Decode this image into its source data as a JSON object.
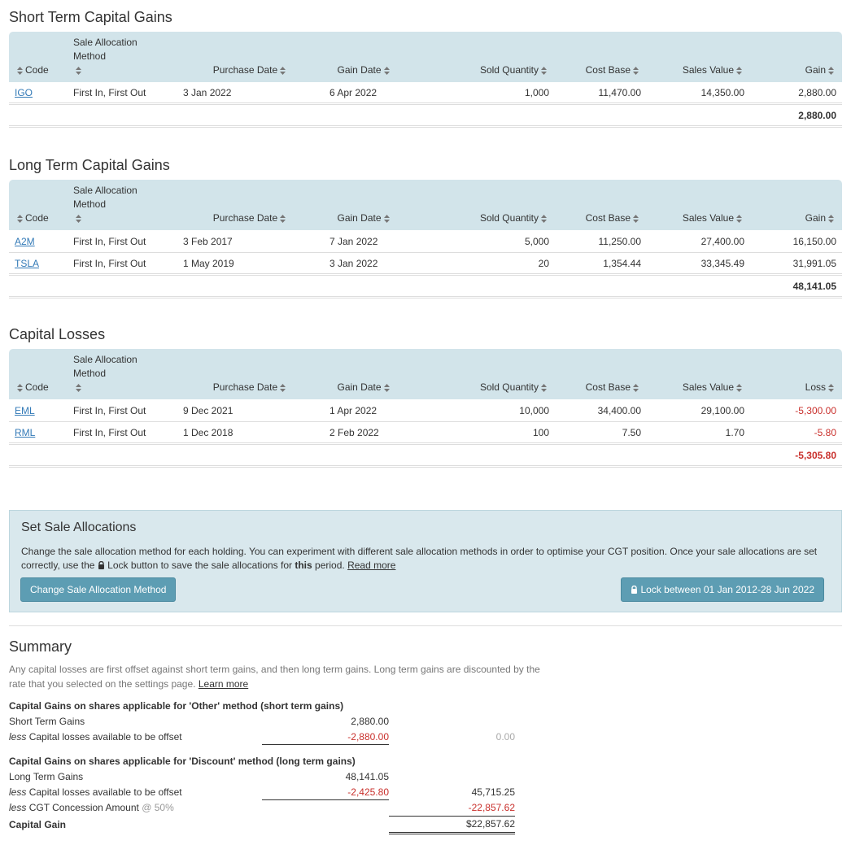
{
  "sections": [
    {
      "title": "Short Term Capital Gains",
      "headers": [
        "Code",
        "Sale Allocation Method",
        "Purchase Date",
        "Gain Date",
        "Sold Quantity",
        "Cost Base",
        "Sales Value",
        "Gain"
      ],
      "rows": [
        [
          "IGO",
          "First In, First Out",
          "3 Jan 2022",
          "6 Apr 2022",
          "1,000",
          "11,470.00",
          "14,350.00",
          "2,880.00"
        ]
      ],
      "total": "2,880.00"
    },
    {
      "title": "Long Term Capital Gains",
      "headers": [
        "Code",
        "Sale Allocation Method",
        "Purchase Date",
        "Gain Date",
        "Sold Quantity",
        "Cost Base",
        "Sales Value",
        "Gain"
      ],
      "rows": [
        [
          "A2M",
          "First In, First Out",
          "3 Feb 2017",
          "7 Jan 2022",
          "5,000",
          "11,250.00",
          "27,400.00",
          "16,150.00"
        ],
        [
          "TSLA",
          "First In, First Out",
          "1 May 2019",
          "3 Jan 2022",
          "20",
          "1,354.44",
          "33,345.49",
          "31,991.05"
        ]
      ],
      "total": "48,141.05"
    },
    {
      "title": "Capital Losses",
      "headers": [
        "Code",
        "Sale Allocation Method",
        "Purchase Date",
        "Gain Date",
        "Sold Quantity",
        "Cost Base",
        "Sales Value",
        "Loss"
      ],
      "rows": [
        [
          "EML",
          "First In, First Out",
          "9 Dec 2021",
          "1 Apr 2022",
          "10,000",
          "34,400.00",
          "29,100.00",
          "-5,300.00"
        ],
        [
          "RML",
          "First In, First Out",
          "1 Dec 2018",
          "2 Feb 2022",
          "100",
          "7.50",
          "1.70",
          "-5.80"
        ]
      ],
      "total": "-5,305.80"
    }
  ],
  "allocations": {
    "title": "Set Sale Allocations",
    "text_1": "Change the sale allocation method for each holding. You can experiment with different sale allocation methods in order to optimise your CGT position. Once your sale allocations are set correctly, use the",
    "lock_word": "Lock",
    "text_2": "button to save the sale allocations for",
    "bold": "this",
    "text_3": "period.",
    "link": "Read more",
    "button_change": "Change Sale Allocation Method",
    "button_lock": "Lock between 01 Jan 2012-28 Jun 2022"
  },
  "summary": {
    "title": "Summary",
    "intro": "Any capital losses are first offset against short term gains, and then long term gains. Long term gains are discounted by the rate that you selected on the settings page.",
    "link": "Learn more",
    "groups": [
      {
        "heading": "Capital Gains on shares applicable for 'Other' method (short term gains)",
        "rows": [
          {
            "label": "Short Term Gains",
            "amount": "2,880.00"
          },
          {
            "prefix": "less",
            "label": "Capital losses available to be offset",
            "amount": "-2,880.00",
            "net": "0.00"
          }
        ]
      },
      {
        "heading": "Capital Gains on shares applicable for 'Discount' method (long term gains)",
        "rows": [
          {
            "label": "Long Term Gains",
            "amount": "48,141.05"
          },
          {
            "prefix": "less",
            "label": "Capital losses available to be offset",
            "amount": "-2,425.80",
            "net": "45,715.25"
          },
          {
            "prefix": "less",
            "label": "CGT Concession Amount",
            "rate": "@ 50%",
            "net": "-22,857.62"
          }
        ],
        "result": {
          "label": "Capital Gain",
          "net": "$22,857.62"
        }
      }
    ]
  }
}
